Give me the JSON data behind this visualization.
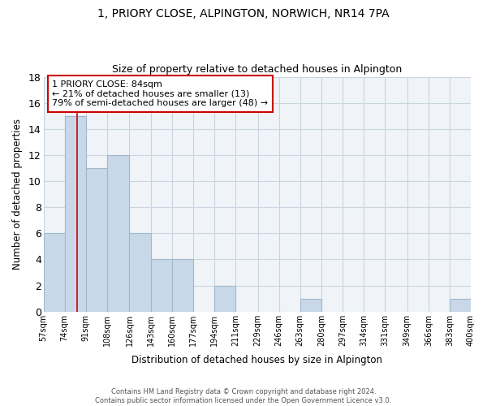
{
  "title": "1, PRIORY CLOSE, ALPINGTON, NORWICH, NR14 7PA",
  "subtitle": "Size of property relative to detached houses in Alpington",
  "xlabel": "Distribution of detached houses by size in Alpington",
  "ylabel": "Number of detached properties",
  "bar_color": "#c8d8e8",
  "bar_edge_color": "#a0b8cc",
  "marker_color": "#cc0000",
  "marker_value": 84,
  "bins": [
    57,
    74,
    91,
    108,
    126,
    143,
    160,
    177,
    194,
    211,
    229,
    246,
    263,
    280,
    297,
    314,
    331,
    349,
    366,
    383,
    400
  ],
  "counts": [
    6,
    15,
    11,
    12,
    6,
    4,
    4,
    0,
    2,
    0,
    0,
    0,
    1,
    0,
    0,
    0,
    0,
    0,
    0,
    1
  ],
  "tick_labels": [
    "57sqm",
    "74sqm",
    "91sqm",
    "108sqm",
    "126sqm",
    "143sqm",
    "160sqm",
    "177sqm",
    "194sqm",
    "211sqm",
    "229sqm",
    "246sqm",
    "263sqm",
    "280sqm",
    "297sqm",
    "314sqm",
    "331sqm",
    "349sqm",
    "366sqm",
    "383sqm",
    "400sqm"
  ],
  "ylim": [
    0,
    18
  ],
  "yticks": [
    0,
    2,
    4,
    6,
    8,
    10,
    12,
    14,
    16,
    18
  ],
  "annotation_title": "1 PRIORY CLOSE: 84sqm",
  "annotation_line1": "← 21% of detached houses are smaller (13)",
  "annotation_line2": "79% of semi-detached houses are larger (48) →",
  "footer_line1": "Contains HM Land Registry data © Crown copyright and database right 2024.",
  "footer_line2": "Contains public sector information licensed under the Open Government Licence v3.0.",
  "background_color": "#f0f4f8",
  "grid_color": "#c8d4e0"
}
